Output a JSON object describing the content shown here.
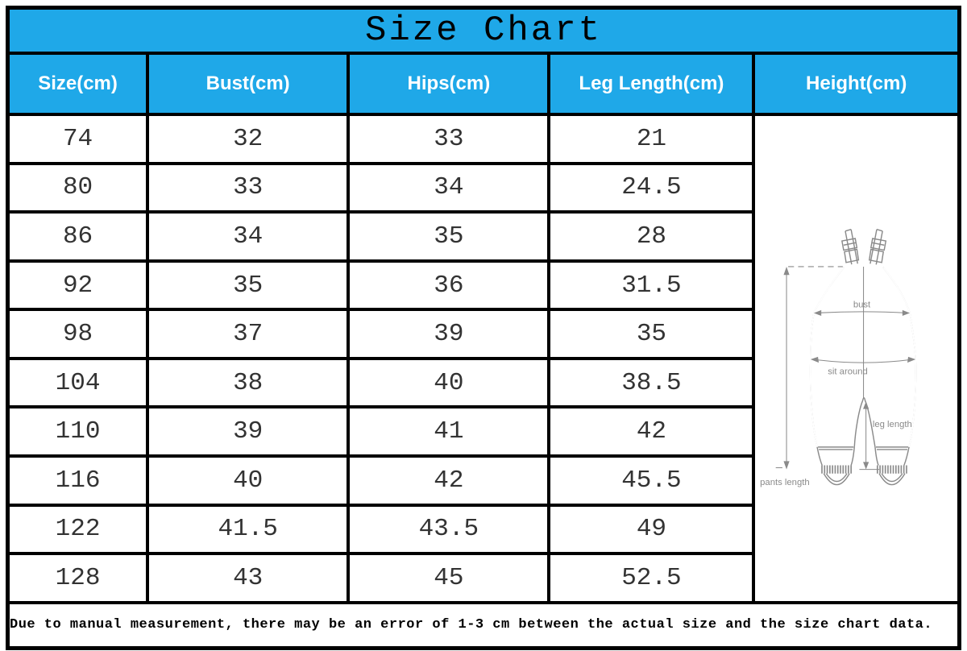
{
  "title": "Size Chart",
  "header": [
    "Size(cm)",
    "Bust(cm)",
    "Hips(cm)",
    "Leg Length(cm)",
    "Height(cm)"
  ],
  "rows": [
    [
      "74",
      "32",
      "33",
      "21"
    ],
    [
      "80",
      "33",
      "34",
      "24.5"
    ],
    [
      "86",
      "34",
      "35",
      "28"
    ],
    [
      "92",
      "35",
      "36",
      "31.5"
    ],
    [
      "98",
      "37",
      "39",
      "35"
    ],
    [
      "104",
      "38",
      "40",
      "38.5"
    ],
    [
      "110",
      "39",
      "41",
      "42"
    ],
    [
      "116",
      "40",
      "42",
      "45.5"
    ],
    [
      "122",
      "41.5",
      "43.5",
      "49"
    ],
    [
      "128",
      "43",
      "45",
      "52.5"
    ]
  ],
  "note": "Due to manual measurement, there may be an error of 1-3 cm between the actual size and the size chart data.",
  "diagram": {
    "bust_label": "bust",
    "sit_around_label": "sit around",
    "leg_length_label": "leg length",
    "pants_length_label": "pants length"
  },
  "colors": {
    "accent": "#1fa8e8",
    "grid": "#000000",
    "header_text": "#ffffff",
    "title_text": "#000000",
    "data_text": "#333333",
    "diagram_stroke": "#8a8a8a"
  },
  "chart_data": {
    "type": "table",
    "title": "Size Chart",
    "columns": [
      "Size(cm)",
      "Bust(cm)",
      "Hips(cm)",
      "Leg Length(cm)",
      "Height(cm)"
    ],
    "rows": [
      {
        "size": 74,
        "bust": 32,
        "hips": 33,
        "leg_length": 21
      },
      {
        "size": 80,
        "bust": 33,
        "hips": 34,
        "leg_length": 24.5
      },
      {
        "size": 86,
        "bust": 34,
        "hips": 35,
        "leg_length": 28
      },
      {
        "size": 92,
        "bust": 35,
        "hips": 36,
        "leg_length": 31.5
      },
      {
        "size": 98,
        "bust": 37,
        "hips": 39,
        "leg_length": 35
      },
      {
        "size": 104,
        "bust": 38,
        "hips": 40,
        "leg_length": 38.5
      },
      {
        "size": 110,
        "bust": 39,
        "hips": 41,
        "leg_length": 42
      },
      {
        "size": 116,
        "bust": 40,
        "hips": 42,
        "leg_length": 45.5
      },
      {
        "size": 122,
        "bust": 41.5,
        "hips": 43.5,
        "leg_length": 49
      },
      {
        "size": 128,
        "bust": 43,
        "hips": 45,
        "leg_length": 52.5
      }
    ],
    "height_column_content": "overalls measurement illustration (bust, sit around, leg length, pants length)",
    "note": "Due to manual measurement, there may be an error of 1-3 cm between the actual size and the size chart data."
  }
}
